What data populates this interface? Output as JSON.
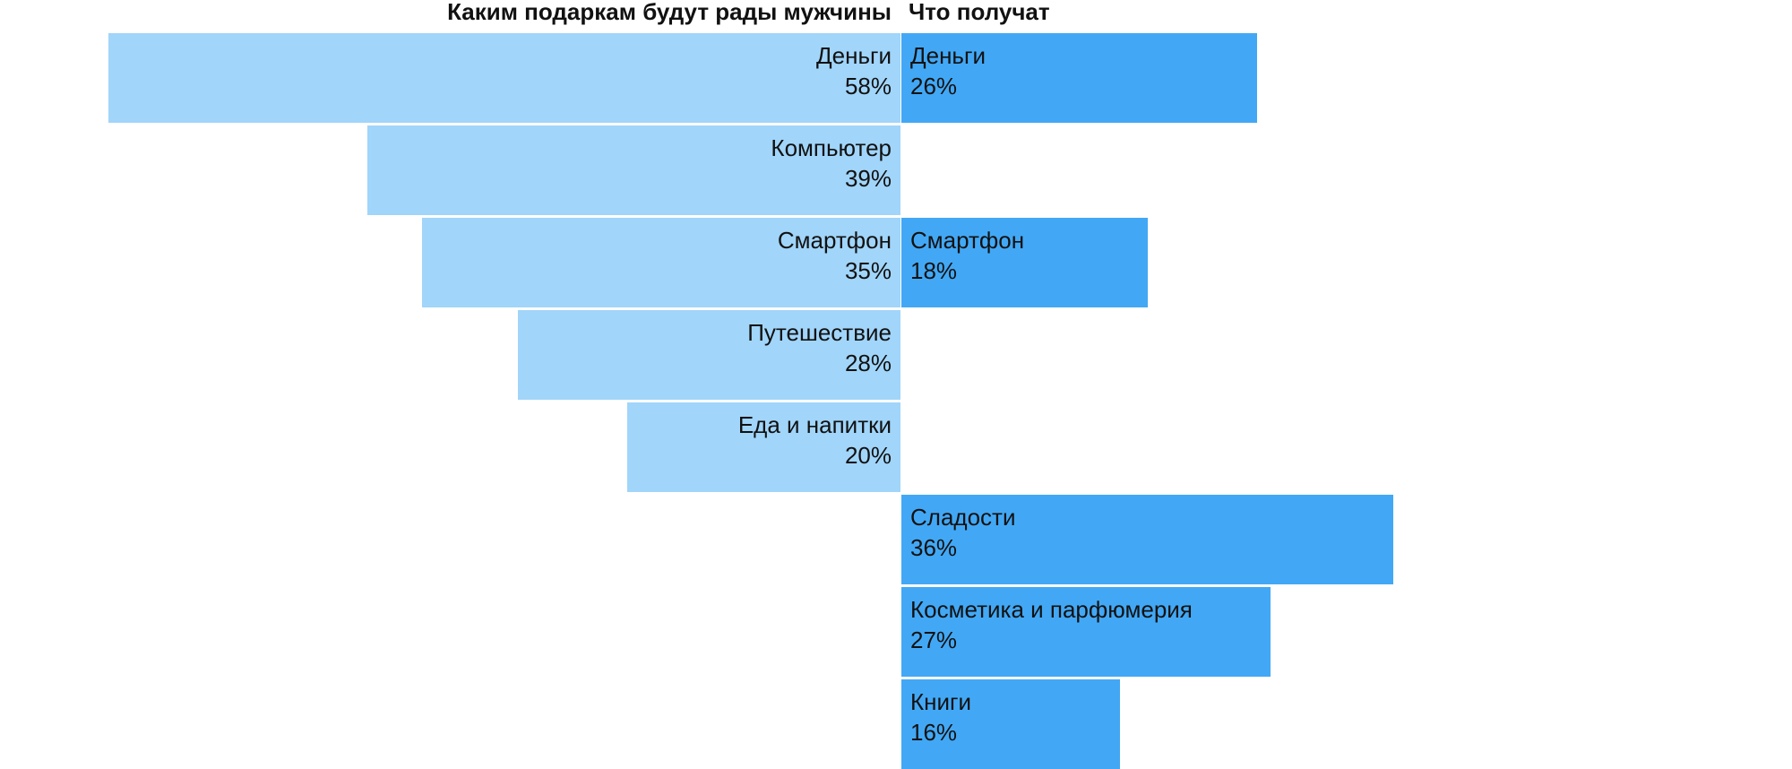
{
  "chart_data": {
    "type": "bar",
    "orientation": "horizontal-diverging",
    "series": [
      {
        "name": "Каким подаркам будут рады мужчины",
        "color": "#a1d5fa",
        "items": [
          {
            "category": "Деньги",
            "value": 58,
            "value_label": "58%"
          },
          {
            "category": "Компьютер",
            "value": 39,
            "value_label": "39%"
          },
          {
            "category": "Смартфон",
            "value": 35,
            "value_label": "35%"
          },
          {
            "category": "Путешествие",
            "value": 28,
            "value_label": "28%"
          },
          {
            "category": "Еда и напитки",
            "value": 20,
            "value_label": "20%"
          }
        ]
      },
      {
        "name": "Что получат",
        "color": "#42a8f5",
        "items": [
          {
            "category": "Деньги",
            "value": 26,
            "value_label": "26%"
          },
          {
            "category": "Смартфон",
            "value": 18,
            "value_label": "18%"
          },
          {
            "category": "Сладости",
            "value": 36,
            "value_label": "36%"
          },
          {
            "category": "Косметика и парфюмерия",
            "value": 27,
            "value_label": "27%"
          },
          {
            "category": "Книги",
            "value": 16,
            "value_label": "16%"
          }
        ]
      }
    ],
    "rows": [
      {
        "left": 0,
        "right": 0
      },
      {
        "left": 1,
        "right": null
      },
      {
        "left": 2,
        "right": 1
      },
      {
        "left": 3,
        "right": null
      },
      {
        "left": 4,
        "right": null
      },
      {
        "left": null,
        "right": 2
      },
      {
        "left": null,
        "right": 3
      },
      {
        "left": null,
        "right": 4
      }
    ],
    "unit": "%"
  }
}
